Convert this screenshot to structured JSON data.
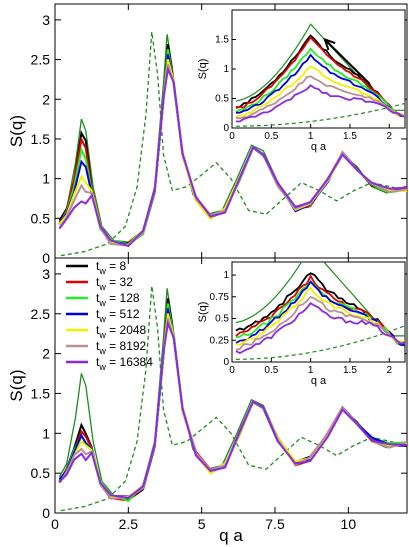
{
  "figure": {
    "x_axis_label": "q a",
    "y_axis_label": "S(q)",
    "inset_x_axis_label": "q a",
    "inset_y_axis_label": "S(q)"
  },
  "chart_data": [
    {
      "type": "line",
      "panel": "top",
      "xlabel": "",
      "ylabel": "S(q)",
      "xlim": [
        0,
        12
      ],
      "ylim": [
        0,
        3.2
      ],
      "yticks": [
        0,
        0.5,
        1,
        1.5,
        2,
        2.5,
        3
      ],
      "ytick_labels": [
        "0",
        "0.5",
        "1",
        "1.5",
        "2",
        "2.5",
        "3"
      ],
      "xticks": [
        0,
        2.5,
        5,
        7.5,
        10
      ],
      "xtick_labels": [],
      "reference_curves": [
        {
          "style": "solid",
          "color": "#1e8c1e",
          "points": [
            [
              0.15,
              0.45
            ],
            [
              0.4,
              0.62
            ],
            [
              0.7,
              1.2
            ],
            [
              0.9,
              1.75
            ],
            [
              1.05,
              1.6
            ],
            [
              1.3,
              0.9
            ],
            [
              1.6,
              0.4
            ],
            [
              2.0,
              0.22
            ],
            [
              2.5,
              0.2
            ],
            [
              3.0,
              0.35
            ],
            [
              3.4,
              0.9
            ],
            [
              3.7,
              2.2
            ],
            [
              3.82,
              2.82
            ],
            [
              4.0,
              2.4
            ],
            [
              4.3,
              1.4
            ],
            [
              4.7,
              0.8
            ],
            [
              5.2,
              0.55
            ],
            [
              5.7,
              0.6
            ],
            [
              6.2,
              1.0
            ],
            [
              6.7,
              1.42
            ],
            [
              7.1,
              1.35
            ],
            [
              7.6,
              0.95
            ],
            [
              8.2,
              0.65
            ],
            [
              8.7,
              0.7
            ],
            [
              9.3,
              1.0
            ],
            [
              9.8,
              1.3
            ],
            [
              10.3,
              1.15
            ],
            [
              10.8,
              0.9
            ],
            [
              11.3,
              0.82
            ],
            [
              12.0,
              0.88
            ]
          ]
        },
        {
          "style": "dashed",
          "color": "#1e8c1e",
          "points": [
            [
              0.2,
              0.03
            ],
            [
              1.0,
              0.08
            ],
            [
              1.8,
              0.18
            ],
            [
              2.4,
              0.4
            ],
            [
              2.8,
              0.9
            ],
            [
              3.1,
              1.8
            ],
            [
              3.3,
              2.85
            ],
            [
              3.5,
              2.3
            ],
            [
              3.7,
              1.3
            ],
            [
              4.0,
              0.85
            ],
            [
              4.5,
              0.9
            ],
            [
              5.0,
              1.05
            ],
            [
              5.5,
              1.2
            ],
            [
              6.0,
              1.0
            ],
            [
              6.6,
              0.6
            ],
            [
              7.2,
              0.55
            ],
            [
              7.8,
              0.75
            ],
            [
              8.4,
              0.95
            ],
            [
              9.0,
              0.85
            ],
            [
              9.6,
              0.72
            ],
            [
              10.2,
              0.85
            ],
            [
              10.8,
              0.95
            ],
            [
              11.4,
              0.9
            ],
            [
              12.0,
              0.85
            ]
          ]
        }
      ],
      "series": [
        {
          "color": "#000000",
          "peak1": 1.58
        },
        {
          "color": "#e00000",
          "peak1": 1.52
        },
        {
          "color": "#22ee22",
          "peak1": 1.35
        },
        {
          "color": "#0000e0",
          "peak1": 1.22
        },
        {
          "color": "#f0f000",
          "peak1": 1.05
        },
        {
          "color": "#bc8f8f",
          "peak1": 0.9
        },
        {
          "color": "#8a2be2",
          "peak1": 0.72
        }
      ],
      "inset": {
        "xlim": [
          0,
          2.2
        ],
        "ylim": [
          0,
          2.0
        ],
        "xticks": [
          0,
          0.5,
          1,
          1.5,
          2
        ],
        "xtick_labels": [
          "0",
          "0.5",
          "1",
          "1.5",
          "2"
        ],
        "yticks": [
          0,
          0.5,
          1,
          1.5
        ],
        "ytick_labels": [
          "0",
          "0.5",
          "1",
          "1.5"
        ],
        "arrow": {
          "from": [
            1.75,
            0.75
          ],
          "to": [
            1.18,
            1.5
          ]
        }
      }
    },
    {
      "type": "line",
      "panel": "bottom",
      "xlabel": "q a",
      "ylabel": "S(q)",
      "xlim": [
        0,
        12
      ],
      "ylim": [
        0,
        3.2
      ],
      "yticks": [
        0,
        0.5,
        1,
        1.5,
        2,
        2.5,
        3
      ],
      "ytick_labels": [
        "0",
        "0.5",
        "1",
        "1.5",
        "2",
        "2.5",
        "3"
      ],
      "xticks": [
        0,
        2.5,
        5,
        7.5,
        10
      ],
      "xtick_labels": [
        "0",
        "2.5",
        "5",
        "7.5",
        "10"
      ],
      "reference_curves": [
        {
          "style": "solid",
          "color": "#1e8c1e",
          "points": [
            [
              0.15,
              0.45
            ],
            [
              0.4,
              0.62
            ],
            [
              0.7,
              1.2
            ],
            [
              0.9,
              1.75
            ],
            [
              1.05,
              1.6
            ],
            [
              1.3,
              0.9
            ],
            [
              1.6,
              0.4
            ],
            [
              2.0,
              0.22
            ],
            [
              2.5,
              0.2
            ],
            [
              3.0,
              0.35
            ],
            [
              3.4,
              0.9
            ],
            [
              3.7,
              2.2
            ],
            [
              3.82,
              2.82
            ],
            [
              4.0,
              2.4
            ],
            [
              4.3,
              1.4
            ],
            [
              4.7,
              0.8
            ],
            [
              5.2,
              0.55
            ],
            [
              5.7,
              0.6
            ],
            [
              6.2,
              1.0
            ],
            [
              6.7,
              1.42
            ],
            [
              7.1,
              1.35
            ],
            [
              7.6,
              0.95
            ],
            [
              8.2,
              0.65
            ],
            [
              8.7,
              0.7
            ],
            [
              9.3,
              1.0
            ],
            [
              9.8,
              1.3
            ],
            [
              10.3,
              1.15
            ],
            [
              10.8,
              0.9
            ],
            [
              11.3,
              0.82
            ],
            [
              12.0,
              0.88
            ]
          ]
        },
        {
          "style": "dashed",
          "color": "#1e8c1e",
          "points": [
            [
              0.2,
              0.03
            ],
            [
              1.0,
              0.08
            ],
            [
              1.8,
              0.18
            ],
            [
              2.4,
              0.4
            ],
            [
              2.8,
              0.9
            ],
            [
              3.1,
              1.8
            ],
            [
              3.3,
              2.85
            ],
            [
              3.5,
              2.3
            ],
            [
              3.7,
              1.3
            ],
            [
              4.0,
              0.85
            ],
            [
              4.5,
              0.9
            ],
            [
              5.0,
              1.05
            ],
            [
              5.5,
              1.2
            ],
            [
              6.0,
              1.0
            ],
            [
              6.6,
              0.6
            ],
            [
              7.2,
              0.55
            ],
            [
              7.8,
              0.75
            ],
            [
              8.4,
              0.95
            ],
            [
              9.0,
              0.85
            ],
            [
              9.6,
              0.72
            ],
            [
              10.2,
              0.85
            ],
            [
              10.8,
              0.95
            ],
            [
              11.4,
              0.9
            ],
            [
              12.0,
              0.85
            ]
          ]
        }
      ],
      "series": [
        {
          "name": "t_w =    8",
          "color": "#000000",
          "peak1": 1.08
        },
        {
          "name": "t_w =   32",
          "color": "#e00000",
          "peak1": 1.02
        },
        {
          "name": "t_w =  128",
          "color": "#22ee22",
          "peak1": 0.98
        },
        {
          "name": "t_w =  512",
          "color": "#0000e0",
          "peak1": 0.95
        },
        {
          "name": "t_w = 2048",
          "color": "#f0f000",
          "peak1": 0.9
        },
        {
          "name": "t_w = 8192",
          "color": "#bc8f8f",
          "peak1": 0.82
        },
        {
          "name": "t_w = 16384",
          "color": "#8a2be2",
          "peak1": 0.72
        }
      ],
      "legend": {
        "placement": "upper-left",
        "entries": [
          {
            "prefix": "t",
            "sub": "w",
            "value": "=    8",
            "color": "#000000"
          },
          {
            "prefix": "t",
            "sub": "w",
            "value": "=   32",
            "color": "#e00000"
          },
          {
            "prefix": "t",
            "sub": "w",
            "value": "=  128",
            "color": "#22ee22"
          },
          {
            "prefix": "t",
            "sub": "w",
            "value": "=  512",
            "color": "#0000e0"
          },
          {
            "prefix": "t",
            "sub": "w",
            "value": "= 2048",
            "color": "#f0f000"
          },
          {
            "prefix": "t",
            "sub": "w",
            "value": "= 8192",
            "color": "#bc8f8f"
          },
          {
            "prefix": "t",
            "sub": "w",
            "value": "= 16384",
            "color": "#8a2be2"
          }
        ]
      },
      "inset": {
        "xlim": [
          0,
          2.2
        ],
        "ylim": [
          0,
          1.15
        ],
        "xticks": [
          0,
          0.5,
          1,
          1.5,
          2
        ],
        "xtick_labels": [
          "0",
          "0.5",
          "1",
          "1.5",
          "2"
        ],
        "yticks": [
          0,
          0.25,
          0.5,
          0.75,
          1
        ],
        "ytick_labels": [
          "0",
          "0.25",
          "0.5",
          "0.75",
          "1"
        ]
      }
    }
  ]
}
